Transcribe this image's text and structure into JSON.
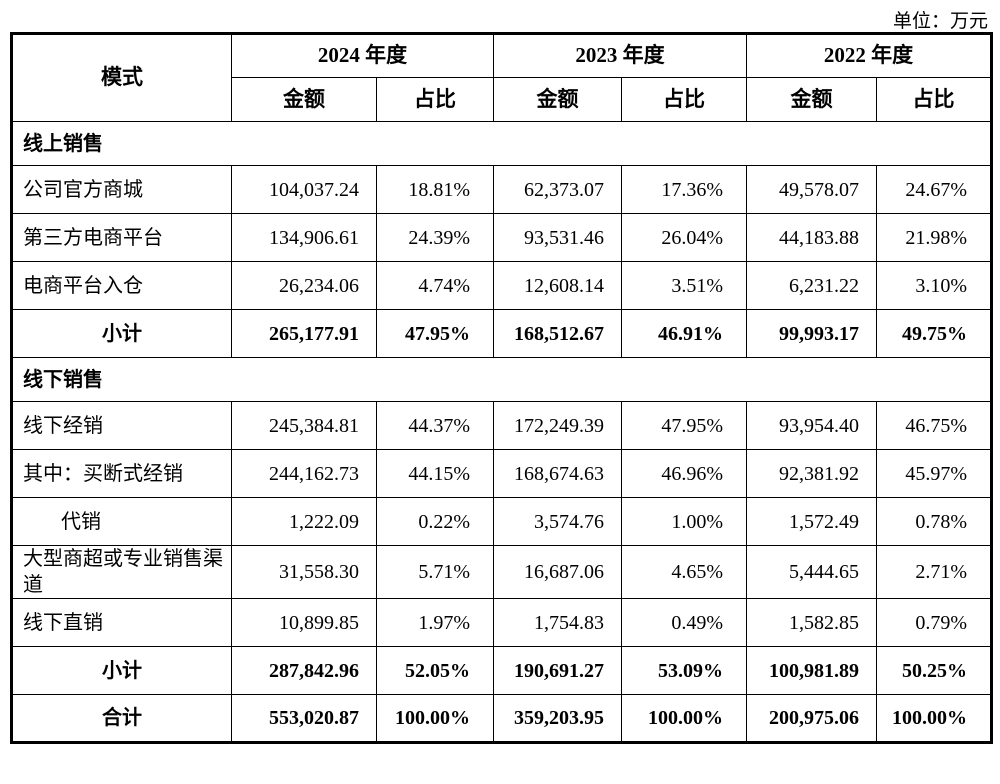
{
  "unit_label": "单位：万元",
  "table": {
    "mode_header": "模式",
    "year_headers": [
      "2024 年度",
      "2023 年度",
      "2022 年度"
    ],
    "sub_headers": [
      "金额",
      "占比"
    ],
    "rows": [
      {
        "type": "section",
        "label": "线上销售"
      },
      {
        "type": "data",
        "label": "公司官方商城",
        "values": [
          "104,037.24",
          "18.81%",
          "62,373.07",
          "17.36%",
          "49,578.07",
          "24.67%"
        ]
      },
      {
        "type": "data",
        "label": "第三方电商平台",
        "values": [
          "134,906.61",
          "24.39%",
          "93,531.46",
          "26.04%",
          "44,183.88",
          "21.98%"
        ]
      },
      {
        "type": "data",
        "label": "电商平台入仓",
        "values": [
          "26,234.06",
          "4.74%",
          "12,608.14",
          "3.51%",
          "6,231.22",
          "3.10%"
        ]
      },
      {
        "type": "subtotal",
        "label": "小计",
        "values": [
          "265,177.91",
          "47.95%",
          "168,512.67",
          "46.91%",
          "99,993.17",
          "49.75%"
        ]
      },
      {
        "type": "section",
        "label": "线下销售"
      },
      {
        "type": "data",
        "label": "线下经销",
        "values": [
          "245,384.81",
          "44.37%",
          "172,249.39",
          "47.95%",
          "93,954.40",
          "46.75%"
        ]
      },
      {
        "type": "data",
        "label": "其中：买断式经销",
        "values": [
          "244,162.73",
          "44.15%",
          "168,674.63",
          "46.96%",
          "92,381.92",
          "45.97%"
        ]
      },
      {
        "type": "data",
        "indent": true,
        "label": "代销",
        "values": [
          "1,222.09",
          "0.22%",
          "3,574.76",
          "1.00%",
          "1,572.49",
          "0.78%"
        ]
      },
      {
        "type": "data",
        "label": "大型商超或专业销售渠道",
        "values": [
          "31,558.30",
          "5.71%",
          "16,687.06",
          "4.65%",
          "5,444.65",
          "2.71%"
        ]
      },
      {
        "type": "data",
        "label": "线下直销",
        "values": [
          "10,899.85",
          "1.97%",
          "1,754.83",
          "0.49%",
          "1,582.85",
          "0.79%"
        ]
      },
      {
        "type": "subtotal",
        "label": "小计",
        "values": [
          "287,842.96",
          "52.05%",
          "190,691.27",
          "53.09%",
          "100,981.89",
          "50.25%"
        ]
      },
      {
        "type": "total",
        "label": "合计",
        "values": [
          "553,020.87",
          "100.00%",
          "359,203.95",
          "100.00%",
          "200,975.06",
          "100.00%"
        ]
      }
    ]
  }
}
